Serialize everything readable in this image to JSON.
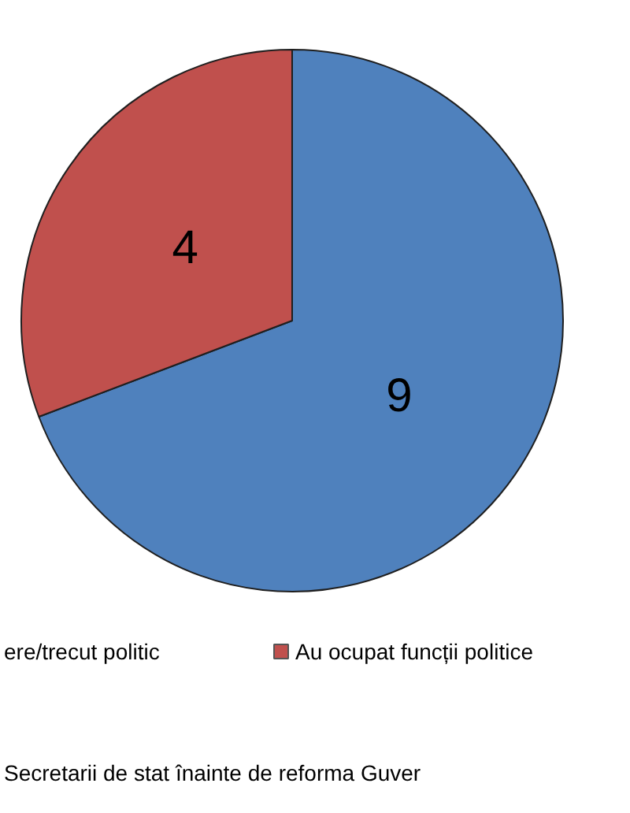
{
  "chart_data": {
    "type": "pie",
    "title": "Secretarii de stat înainte de reforma Guver",
    "categories": [
      "ere/trecut politic",
      "Au ocupat funcții politice"
    ],
    "values": [
      9,
      4
    ],
    "colors": [
      "#4f81bd",
      "#c0504d"
    ],
    "data_labels": true,
    "legend": "bottom"
  }
}
